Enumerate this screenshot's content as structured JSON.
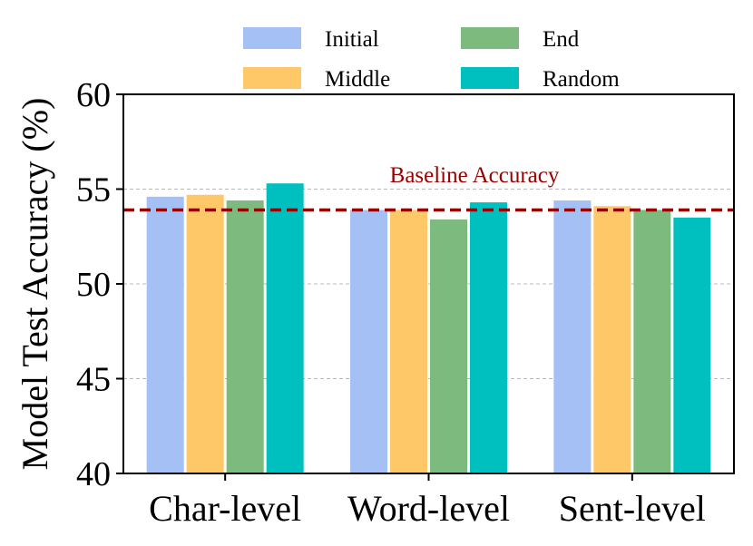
{
  "chart_data": {
    "type": "bar",
    "title": "",
    "xlabel": "",
    "ylabel": "Model Test Accuracy (%)",
    "ylim": [
      40,
      60
    ],
    "yticks": [
      "40",
      "45",
      "50",
      "55",
      "60"
    ],
    "categories": [
      "Char-level",
      "Word-level",
      "Sent-level"
    ],
    "series": [
      {
        "name": "Initial",
        "color": "#a4c0f4",
        "values": [
          54.6,
          53.9,
          54.4
        ]
      },
      {
        "name": "Middle",
        "color": "#fec868",
        "values": [
          54.7,
          53.9,
          54.1
        ]
      },
      {
        "name": "End",
        "color": "#7dba7d",
        "values": [
          54.4,
          53.4,
          53.9
        ]
      },
      {
        "name": "Random",
        "color": "#00bfbf",
        "values": [
          55.3,
          54.3,
          53.5
        ]
      }
    ],
    "baseline": {
      "label": "Baseline Accuracy",
      "value": 53.9,
      "color": "#990000"
    },
    "grid": "horizontal dashed",
    "legend_position": "top"
  }
}
